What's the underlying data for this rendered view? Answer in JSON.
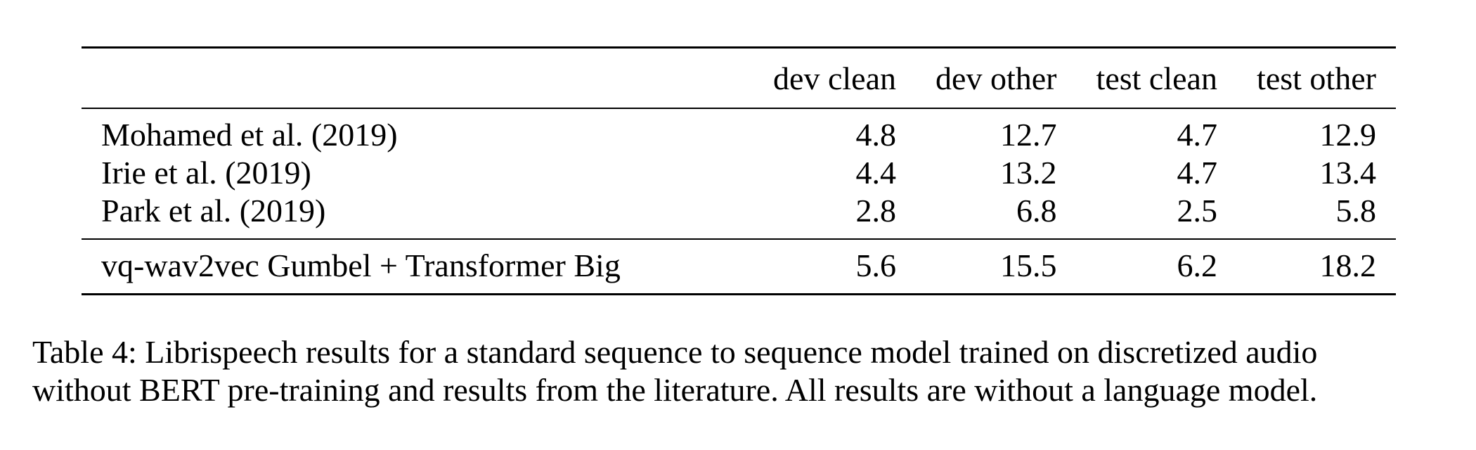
{
  "table": {
    "columns": [
      "",
      "dev clean",
      "dev other",
      "test clean",
      "test other"
    ],
    "literature_rows": [
      {
        "method": "Mohamed et al. (2019)",
        "values": [
          "4.8",
          "12.7",
          "4.7",
          "12.9"
        ]
      },
      {
        "method": "Irie et al. (2019)",
        "values": [
          "4.4",
          "13.2",
          "4.7",
          "13.4"
        ]
      },
      {
        "method": "Park et al. (2019)",
        "values": [
          "2.8",
          "6.8",
          "2.5",
          "5.8"
        ]
      }
    ],
    "our_rows": [
      {
        "method": "vq-wav2vec Gumbel + Transformer Big",
        "values": [
          "5.6",
          "15.5",
          "6.2",
          "18.2"
        ]
      }
    ]
  },
  "caption": {
    "line1": "Table 4: Librispeech results for a standard sequence to sequence model trained on discretized audio",
    "line2": "without BERT pre-training and results from the literature. All results are without a language model."
  }
}
